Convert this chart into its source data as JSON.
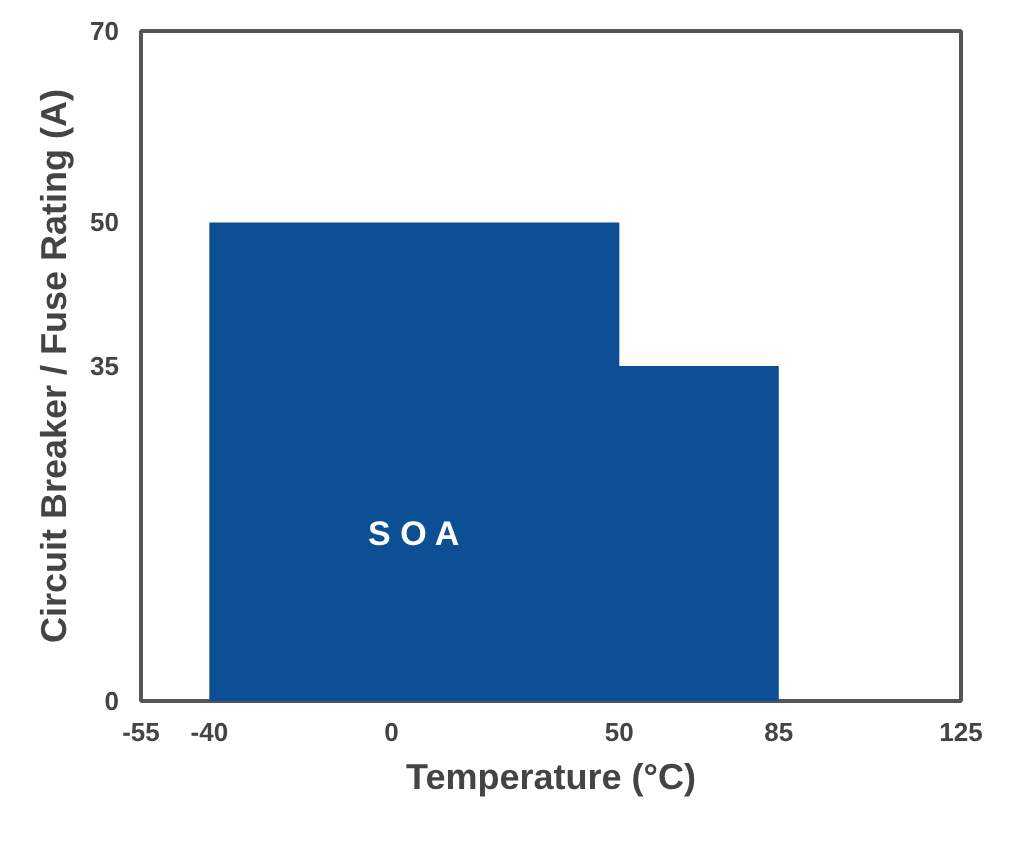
{
  "chart_data": {
    "type": "area",
    "xlabel": "Temperature (°C)",
    "ylabel": "Circuit Breaker / Fuse Rating (A)",
    "x": [
      -40,
      50,
      50,
      85
    ],
    "series": [
      {
        "color": "#0d4f94",
        "values": [
          50,
          50,
          35,
          35
        ]
      }
    ],
    "xlim": [
      -55,
      125
    ],
    "xticks": [
      -55,
      -40,
      0,
      50,
      85,
      125
    ],
    "ylim": [
      0,
      70
    ],
    "yticks": [
      0,
      35,
      50,
      70
    ],
    "grid": false,
    "annotations": [
      "S O A"
    ]
  }
}
